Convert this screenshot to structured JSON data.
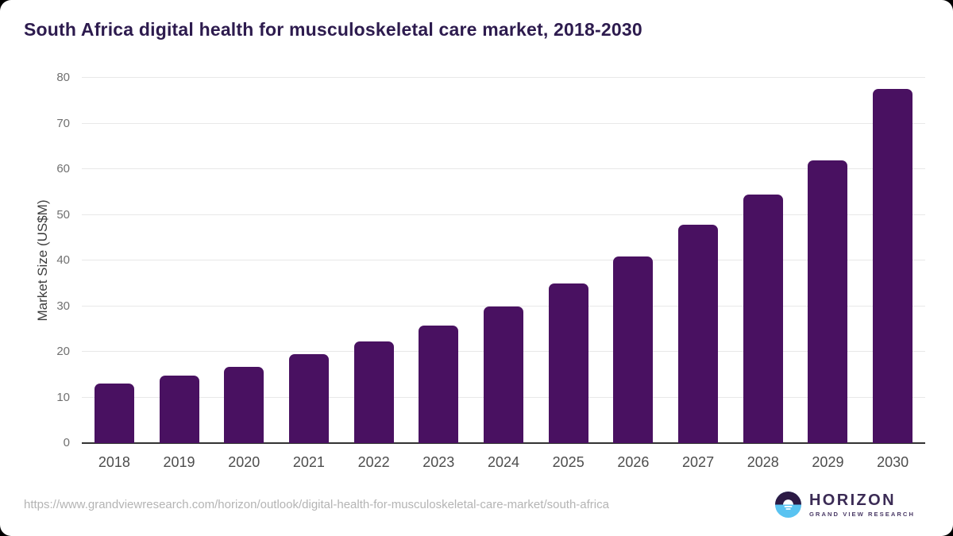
{
  "title": "South Africa digital health for musculoskeletal care market, 2018-2030",
  "chart_data": {
    "type": "bar",
    "categories": [
      "2018",
      "2019",
      "2020",
      "2021",
      "2022",
      "2023",
      "2024",
      "2025",
      "2026",
      "2027",
      "2028",
      "2029",
      "2030"
    ],
    "values": [
      13.1,
      14.7,
      16.7,
      19.4,
      22.3,
      25.8,
      30.0,
      34.9,
      40.8,
      47.9,
      54.5,
      62.0,
      77.5
    ],
    "title": "South Africa digital health for musculoskeletal care market, 2018-2030",
    "xlabel": "",
    "ylabel": "Market Size (US$M)",
    "ylim": [
      0,
      80
    ],
    "yticks": [
      0,
      10,
      20,
      30,
      40,
      50,
      60,
      70,
      80
    ],
    "grid": true,
    "legend": "none",
    "bar_color": "#491161"
  },
  "footer": {
    "source_url": "https://www.grandviewresearch.com/horizon/outlook/digital-health-for-musculoskeletal-care-market/south-africa",
    "logo": {
      "brand": "HORIZON",
      "sub": "GRAND VIEW RESEARCH"
    }
  },
  "colors": {
    "bar": "#491161",
    "title_text": "#2d1b4e",
    "grid_line": "#e8e8e8",
    "axis_line": "#333333",
    "tick_text": "#707070",
    "category_text": "#4d4d4d",
    "url_text": "#b4b4b4",
    "logo_dark": "#2c1a45",
    "logo_blue": "#59c3f1"
  }
}
